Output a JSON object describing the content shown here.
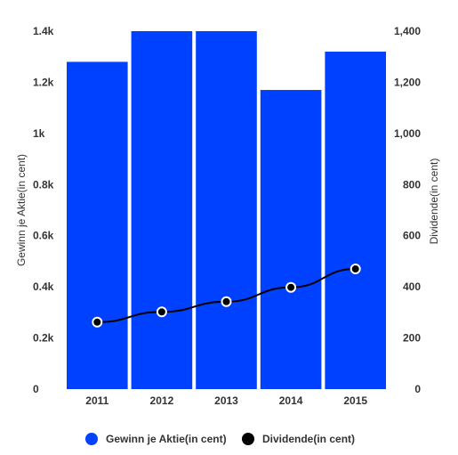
{
  "chart_data": {
    "type": "bar",
    "categories": [
      "2011",
      "2012",
      "2013",
      "2014",
      "2015"
    ],
    "series": [
      {
        "name": "Gewinn je Aktie(in cent)",
        "type": "bar",
        "axis": "left",
        "color": "#0040ff",
        "values": [
          1280,
          1400,
          1400,
          1170,
          1320
        ]
      },
      {
        "name": "Dividende(in cent)",
        "type": "line",
        "axis": "right",
        "color": "#000000",
        "values": [
          262,
          302,
          342,
          398,
          470
        ]
      }
    ],
    "ylabel_left": "Gewinn je Aktie(in cent)",
    "ylabel_right": "Dividende(in cent)",
    "ylim_left": [
      0,
      1400
    ],
    "ylim_right": [
      0,
      1400
    ],
    "yticks_left": [
      "0",
      "0.2k",
      "0.4k",
      "0.6k",
      "0.8k",
      "1k",
      "1.2k",
      "1.4k"
    ],
    "yticks_right": [
      "0",
      "200",
      "400",
      "600",
      "800",
      "1,000",
      "1,200",
      "1,400"
    ],
    "grid": false,
    "legend_position": "bottom"
  }
}
